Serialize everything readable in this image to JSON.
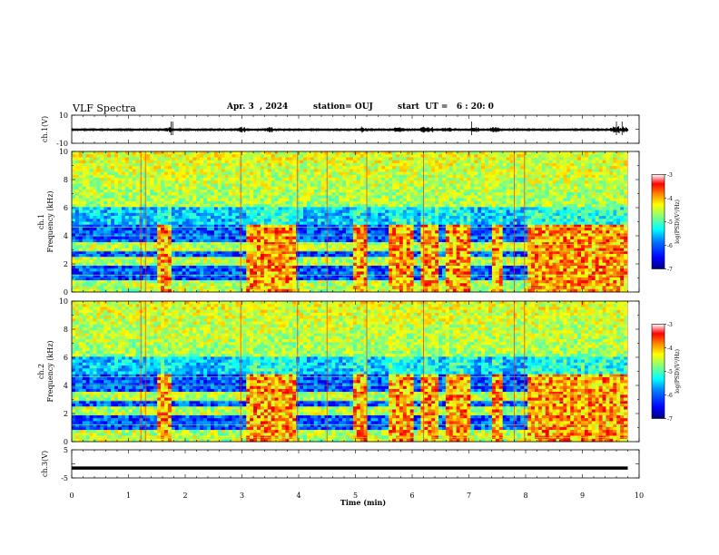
{
  "header": {
    "title": "VLF Spectra",
    "date": "Apr. 3  , 2024",
    "station": "station= OUJ",
    "start": "start  UT =   6 : 20: 0"
  },
  "chart_data": [
    {
      "type": "line",
      "panel": "ch1-waveform",
      "ylabel": "ch.1(V)",
      "ylim": [
        -10,
        10
      ],
      "yticks": [
        "10",
        "-10"
      ],
      "xlim": [
        0,
        10
      ]
    },
    {
      "type": "heatmap",
      "panel": "ch1-spectrogram",
      "ylabel": "ch.1\nFrequency (kHz)",
      "ylabel_line1": "ch.1",
      "ylabel_line2": "Frequency (kHz)",
      "ylim": [
        0,
        10
      ],
      "yticks": [
        "0",
        "2",
        "4",
        "6",
        "8",
        "10"
      ],
      "xlim": [
        0,
        10
      ],
      "colorbar": {
        "min": -7,
        "max": -3,
        "ticks": [
          "-3",
          "-4",
          "-5",
          "-6",
          "-7"
        ],
        "label": "log(PSD)(V²/Hz)"
      },
      "active_intervals_min": [
        [
          1.5,
          1.75
        ],
        [
          3.1,
          3.95
        ],
        [
          4.95,
          5.2
        ],
        [
          5.6,
          6.05
        ],
        [
          6.15,
          6.45
        ],
        [
          6.6,
          7.05
        ],
        [
          7.4,
          7.6
        ],
        [
          8.05,
          9.8
        ]
      ],
      "emission_band_khz": [
        0,
        4.7
      ],
      "vertical_spikes_min": [
        1.22,
        1.3,
        2.98,
        3.98,
        4.5,
        5.2,
        6.2,
        7.8,
        7.98,
        9.8
      ]
    },
    {
      "type": "heatmap",
      "panel": "ch2-spectrogram",
      "ylabel_line1": "ch.2",
      "ylabel_line2": "Frequency (kHz)",
      "ylim": [
        0,
        10
      ],
      "yticks": [
        "0",
        "2",
        "4",
        "6",
        "8",
        "10"
      ],
      "xlim": [
        0,
        10
      ],
      "colorbar": {
        "min": -7,
        "max": -3,
        "ticks": [
          "-3",
          "-4",
          "-5",
          "-6",
          "-7"
        ],
        "label": "log(PSD)(V²/Hz)"
      },
      "active_intervals_min": [
        [
          1.5,
          1.75
        ],
        [
          3.1,
          3.95
        ],
        [
          4.95,
          5.2
        ],
        [
          5.6,
          6.05
        ],
        [
          6.15,
          6.45
        ],
        [
          6.6,
          7.05
        ],
        [
          7.4,
          7.6
        ],
        [
          8.05,
          9.8
        ]
      ],
      "emission_band_khz": [
        0,
        4.7
      ]
    },
    {
      "type": "line",
      "panel": "ch3-waveform",
      "ylabel": "ch.3(V)",
      "ylim": [
        -5,
        5
      ],
      "yticks": [
        "5",
        "-5"
      ],
      "x": [
        0,
        9.8
      ],
      "y": [
        -1.5,
        -1.5
      ],
      "xlim": [
        0,
        10
      ]
    }
  ],
  "xaxis": {
    "label": "Time (min)",
    "ticks": [
      "0",
      "1",
      "2",
      "3",
      "4",
      "5",
      "6",
      "7",
      "8",
      "9",
      "10"
    ]
  },
  "colors": {
    "colormap": [
      "#00007f",
      "#0000ff",
      "#0080ff",
      "#00ffff",
      "#80ff80",
      "#ffff00",
      "#ff8000",
      "#ff0000",
      "#800000"
    ]
  }
}
